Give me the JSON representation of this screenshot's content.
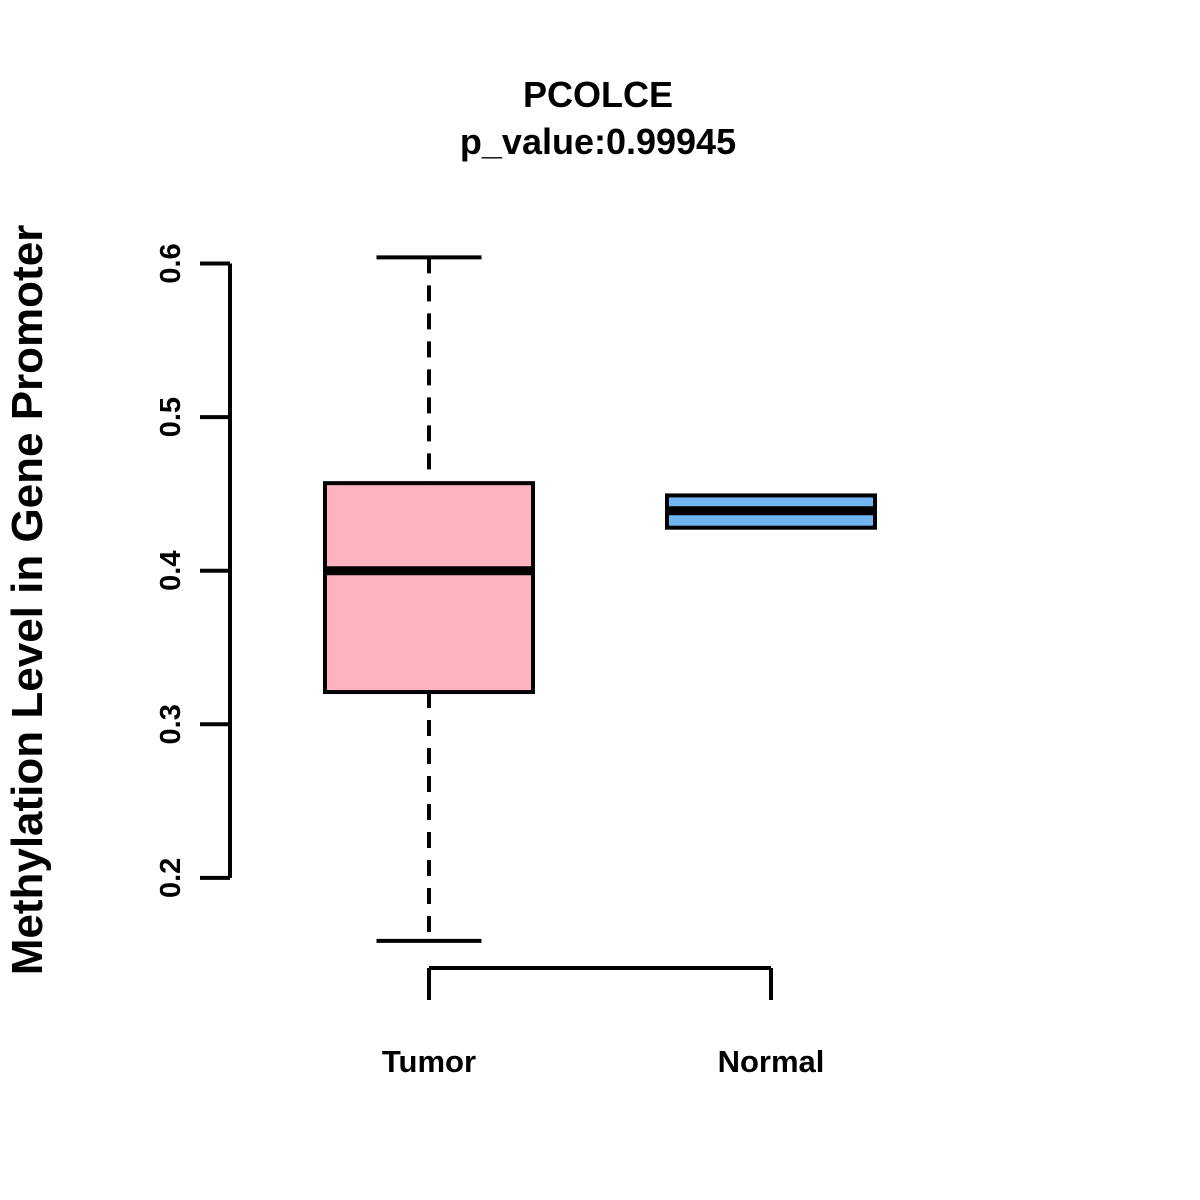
{
  "chart_data": {
    "type": "boxplot",
    "title": "PCOLCE",
    "subtitle": "p_value:0.99945",
    "ylabel": "Methylation Level in Gene Promoter",
    "categories": [
      "Tumor",
      "Normal"
    ],
    "yticks": [
      0.2,
      0.3,
      0.4,
      0.5,
      0.6
    ],
    "ytick_labels": [
      "0.2",
      "0.3",
      "0.4",
      "0.5",
      "0.6"
    ],
    "ylim": [
      0.15,
      0.62
    ],
    "grid": false,
    "legend": "none",
    "series": [
      {
        "name": "Tumor",
        "whisker_low": 0.159,
        "q1": 0.321,
        "median": 0.4,
        "q3": 0.457,
        "whisker_high": 0.604,
        "fill": "#FFB3C1"
      },
      {
        "name": "Normal",
        "whisker_low": null,
        "q1": 0.428,
        "median": 0.439,
        "q3": 0.449,
        "whisker_high": null,
        "fill": "#70B7F2"
      }
    ],
    "colors": {
      "box_border": "#000000",
      "median_line": "#000000",
      "axis": "#000000",
      "background": "#ffffff"
    }
  }
}
